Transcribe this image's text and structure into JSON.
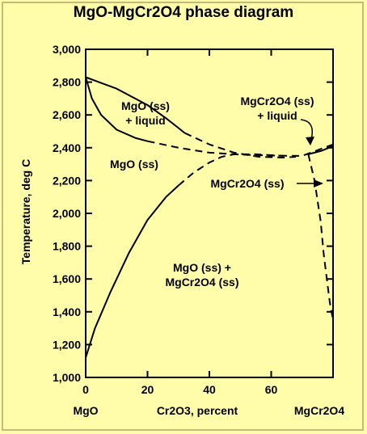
{
  "chart_data": {
    "type": "line",
    "title": "MgO-MgCr2O4 phase diagram",
    "xlabel": "Cr2O3, percent",
    "ylabel": "Temperature, deg C",
    "x_end_labels": {
      "left": "MgO",
      "right": "MgCr2O4"
    },
    "xlim": [
      0,
      80
    ],
    "ylim": [
      1000,
      3000
    ],
    "x_ticks": [
      0,
      20,
      40,
      60
    ],
    "x_tick_labels": [
      "0",
      "20",
      "40",
      "60"
    ],
    "y_ticks": [
      1000,
      1200,
      1400,
      1600,
      1800,
      2000,
      2200,
      2400,
      2600,
      2800,
      3000
    ],
    "y_tick_labels": [
      "1,000",
      "1,200",
      "1,400",
      "1,600",
      "1,800",
      "2,000",
      "2,200",
      "2,400",
      "2,600",
      "2,800",
      "3,000"
    ],
    "grid": false,
    "series": [
      {
        "style": "solid",
        "points": [
          [
            0,
            2830
          ],
          [
            10,
            2760
          ],
          [
            20,
            2660
          ],
          [
            26,
            2580
          ],
          [
            30,
            2520
          ],
          [
            32,
            2490
          ]
        ]
      },
      {
        "style": "dashed",
        "points": [
          [
            32,
            2490
          ],
          [
            40,
            2420
          ],
          [
            48,
            2370
          ],
          [
            56,
            2345
          ],
          [
            64,
            2340
          ],
          [
            68,
            2345
          ]
        ]
      },
      {
        "style": "solid",
        "points": [
          [
            0,
            2830
          ],
          [
            2,
            2700
          ],
          [
            5,
            2600
          ],
          [
            10,
            2510
          ],
          [
            16,
            2460
          ],
          [
            20,
            2440
          ]
        ]
      },
      {
        "style": "dashed",
        "points": [
          [
            20,
            2440
          ],
          [
            30,
            2400
          ],
          [
            40,
            2370
          ],
          [
            50,
            2358
          ],
          [
            60,
            2352
          ],
          [
            70,
            2350
          ],
          [
            80,
            2420
          ]
        ]
      },
      {
        "style": "solid",
        "points": [
          [
            0,
            1120
          ],
          [
            3,
            1300
          ],
          [
            8,
            1520
          ],
          [
            14,
            1760
          ],
          [
            20,
            1960
          ],
          [
            26,
            2100
          ],
          [
            30,
            2170
          ]
        ]
      },
      {
        "style": "dashed",
        "points": [
          [
            30,
            2170
          ],
          [
            35,
            2250
          ],
          [
            40,
            2310
          ],
          [
            44,
            2345
          ],
          [
            48,
            2360
          ],
          [
            55,
            2360
          ],
          [
            64,
            2350
          ]
        ]
      },
      {
        "style": "dashed",
        "points": [
          [
            72,
            2360
          ],
          [
            74,
            2200
          ],
          [
            76,
            1950
          ],
          [
            77,
            1750
          ],
          [
            78,
            1600
          ],
          [
            79,
            1450
          ],
          [
            80,
            1350
          ]
        ]
      },
      {
        "style": "solid",
        "points": [
          [
            72,
            2360
          ],
          [
            76,
            2380
          ],
          [
            80,
            2410
          ]
        ]
      }
    ],
    "annotations": [
      {
        "lines": [
          "MgO (ss)",
          "+ liquid"
        ]
      },
      {
        "lines": [
          "MgCr2O4 (ss)",
          "+ liquid"
        ]
      },
      {
        "lines": [
          "MgO (ss)"
        ]
      },
      {
        "lines": [
          "MgCr2O4 (ss)"
        ]
      },
      {
        "lines": [
          "MgO (ss) +",
          "MgCr2O4 (ss)"
        ]
      }
    ]
  }
}
